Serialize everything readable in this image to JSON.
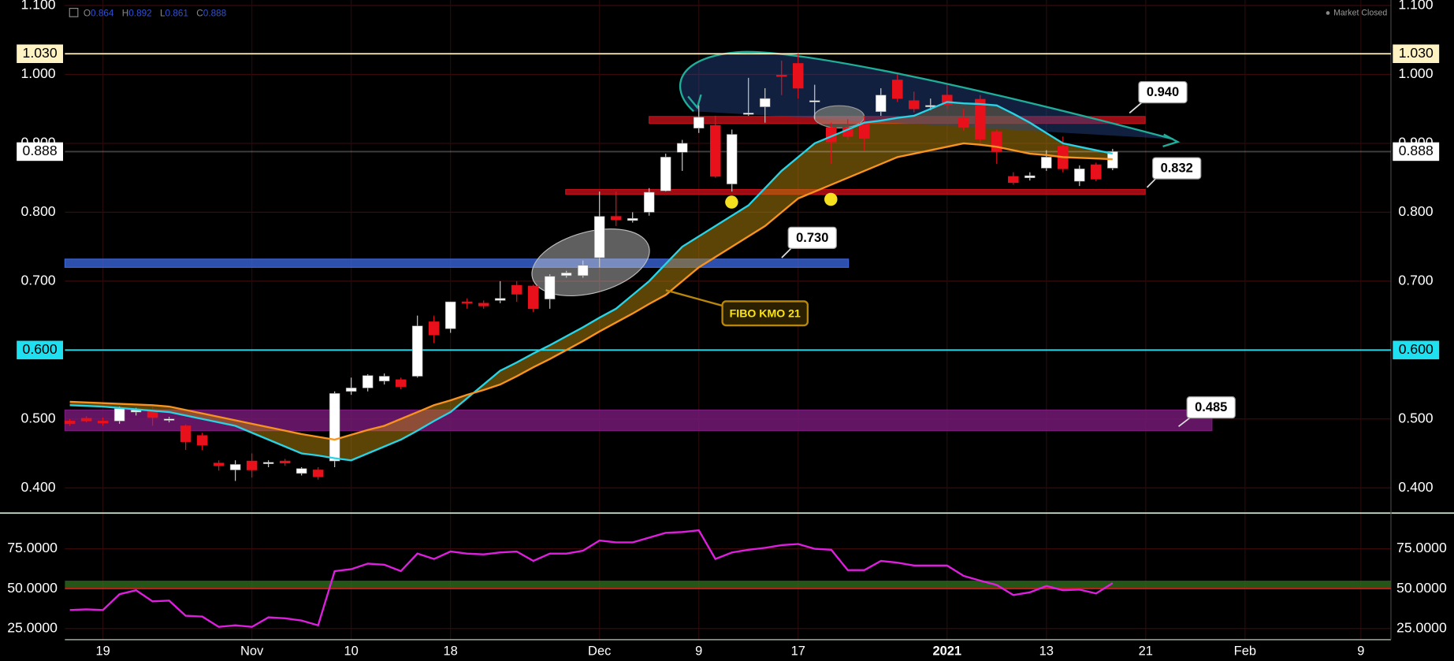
{
  "header": {
    "open_label": "O",
    "open": 0.864,
    "high_label": "H",
    "high": 0.892,
    "low_label": "L",
    "low": 0.861,
    "close_label": "C",
    "close": 0.888,
    "status": "Market Closed"
  },
  "chart_data": [
    {
      "type": "candlestick",
      "categories": [
        null,
        null,
        "19",
        null,
        null,
        null,
        null,
        null,
        null,
        null,
        null,
        "Nov",
        null,
        null,
        null,
        null,
        null,
        "10",
        null,
        null,
        null,
        null,
        null,
        "18",
        null,
        null,
        null,
        null,
        null,
        null,
        null,
        null,
        "Dec",
        null,
        null,
        null,
        null,
        null,
        "9",
        null,
        null,
        null,
        null,
        null,
        "17",
        null,
        null,
        null,
        null,
        null,
        null,
        null,
        null,
        "2021",
        null,
        null,
        null,
        null,
        null,
        "13",
        null,
        null,
        null,
        null,
        null,
        "21",
        null,
        null,
        null,
        null,
        null,
        "Feb",
        null,
        null,
        null,
        null,
        null,
        null,
        "9",
        null
      ],
      "ohlc": {
        "open": [
          0.497,
          0.501,
          0.497,
          0.497,
          0.51,
          0.514,
          0.498,
          0.49,
          0.476,
          0.436,
          0.426,
          0.439,
          0.435,
          0.439,
          0.421,
          0.426,
          0.439,
          0.54,
          0.545,
          0.555,
          0.557,
          0.562,
          0.641,
          0.631,
          0.67,
          0.668,
          0.672,
          0.694,
          0.693,
          0.674,
          0.708,
          0.708,
          0.734,
          0.794,
          0.788,
          0.8,
          0.831,
          0.887,
          0.922,
          0.926,
          0.841,
          0.942,
          0.953,
          0.999,
          1.016,
          0.96,
          0.923,
          0.923,
          0.929,
          0.946,
          0.992,
          0.962,
          0.953,
          0.97,
          0.937,
          0.964,
          0.917,
          0.852,
          0.85,
          0.864,
          0.896,
          0.845,
          0.869,
          0.864
        ],
        "high": [
          0.5,
          0.504,
          0.502,
          0.518,
          0.516,
          0.52,
          0.503,
          0.492,
          0.48,
          0.44,
          0.44,
          0.45,
          0.44,
          0.442,
          0.43,
          0.43,
          0.54,
          0.56,
          0.565,
          0.566,
          0.56,
          0.65,
          0.65,
          0.67,
          0.675,
          0.672,
          0.7,
          0.7,
          0.695,
          0.71,
          0.715,
          0.73,
          0.83,
          0.83,
          0.8,
          0.835,
          0.885,
          0.905,
          0.955,
          0.94,
          0.92,
          0.995,
          0.98,
          1.02,
          1.03,
          0.985,
          0.93,
          0.935,
          0.94,
          0.98,
          1.0,
          0.975,
          0.965,
          0.985,
          0.95,
          0.97,
          0.92,
          0.858,
          0.858,
          0.89,
          0.91,
          0.868,
          0.872,
          0.892
        ],
        "low": [
          0.49,
          0.495,
          0.49,
          0.493,
          0.505,
          0.49,
          0.495,
          0.455,
          0.455,
          0.425,
          0.41,
          0.415,
          0.43,
          0.432,
          0.418,
          0.412,
          0.43,
          0.535,
          0.54,
          0.55,
          0.543,
          0.56,
          0.61,
          0.625,
          0.66,
          0.66,
          0.668,
          0.67,
          0.655,
          0.66,
          0.705,
          0.705,
          0.72,
          0.78,
          0.785,
          0.795,
          0.83,
          0.86,
          0.915,
          0.85,
          0.83,
          0.94,
          0.93,
          0.97,
          0.965,
          0.935,
          0.87,
          0.905,
          0.89,
          0.94,
          0.96,
          0.945,
          0.948,
          0.95,
          0.918,
          0.9,
          0.87,
          0.84,
          0.846,
          0.86,
          0.858,
          0.838,
          0.845,
          0.861
        ],
        "close": [
          0.493,
          0.497,
          0.494,
          0.515,
          0.513,
          0.502,
          0.5,
          0.467,
          0.462,
          0.432,
          0.434,
          0.426,
          0.437,
          0.436,
          0.428,
          0.416,
          0.537,
          0.545,
          0.563,
          0.562,
          0.547,
          0.635,
          0.622,
          0.67,
          0.668,
          0.664,
          0.675,
          0.681,
          0.66,
          0.707,
          0.712,
          0.723,
          0.794,
          0.789,
          0.791,
          0.829,
          0.88,
          0.9,
          0.938,
          0.852,
          0.913,
          0.944,
          0.965,
          0.997,
          0.98,
          0.962,
          0.902,
          0.91,
          0.907,
          0.97,
          0.965,
          0.95,
          0.955,
          0.956,
          0.923,
          0.906,
          0.888,
          0.843,
          0.853,
          0.88,
          0.863,
          0.863,
          0.848,
          0.888
        ]
      },
      "up_color": "#ffffff",
      "down_color": "#e8101a",
      "overlays": [
        {
          "color": "#29d3e6",
          "values": [
            0.52,
            0.519,
            0.518,
            0.516,
            0.514,
            0.512,
            0.51,
            0.505,
            0.5,
            0.495,
            0.49,
            0.48,
            0.47,
            0.46,
            0.45,
            0.447,
            0.443,
            0.44,
            0.45,
            0.46,
            0.47,
            0.483,
            0.497,
            0.51,
            0.53,
            0.55,
            0.57,
            0.582,
            0.595,
            0.607,
            0.62,
            0.633,
            0.647,
            0.66,
            0.68,
            0.7,
            0.725,
            0.75,
            0.765,
            0.78,
            0.795,
            0.81,
            0.835,
            0.86,
            0.88,
            0.9,
            0.91,
            0.92,
            0.93,
            0.933,
            0.937,
            0.94,
            0.95,
            0.96,
            0.958,
            0.957,
            0.955,
            0.943,
            0.93,
            0.915,
            0.9,
            0.895,
            0.89,
            0.885
          ]
        },
        {
          "color": "#f7931e",
          "values": [
            0.525,
            0.524,
            0.523,
            0.522,
            0.521,
            0.52,
            0.518,
            0.513,
            0.508,
            0.503,
            0.498,
            0.493,
            0.488,
            0.483,
            0.478,
            0.474,
            0.47,
            0.477,
            0.484,
            0.49,
            0.5,
            0.51,
            0.52,
            0.527,
            0.535,
            0.542,
            0.55,
            0.562,
            0.575,
            0.587,
            0.6,
            0.613,
            0.627,
            0.64,
            0.653,
            0.667,
            0.68,
            0.7,
            0.72,
            0.735,
            0.75,
            0.765,
            0.78,
            0.8,
            0.82,
            0.83,
            0.84,
            0.85,
            0.86,
            0.87,
            0.88,
            0.885,
            0.89,
            0.895,
            0.9,
            0.898,
            0.895,
            0.89,
            0.885,
            0.883,
            0.88,
            0.879,
            0.878,
            0.877
          ]
        }
      ],
      "ylim": [
        0.364,
        1.108
      ],
      "yticks": [
        {
          "value": 0.4,
          "label": "0.400"
        },
        {
          "value": 0.5,
          "label": "0.500"
        },
        {
          "value": 0.6,
          "label": "0.600"
        },
        {
          "value": 0.7,
          "label": "0.700"
        },
        {
          "value": 0.8,
          "label": "0.800"
        },
        {
          "value": 0.9,
          "label": "0.900"
        },
        {
          "value": 1.0,
          "label": "1.000"
        },
        {
          "value": 1.1,
          "label": "1.100"
        }
      ],
      "grid": true,
      "levels": [
        {
          "value": 1.03,
          "label": "1.030",
          "color": "#fff3c4"
        },
        {
          "value": 0.888,
          "label": "0.888",
          "color": "#ffffff"
        },
        {
          "value": 0.6,
          "label": "0.600",
          "color": "#1ee0f0"
        }
      ],
      "zones": [
        {
          "low": 0.929,
          "high": 0.939,
          "color": "#c0101a"
        },
        {
          "low": 0.826,
          "high": 0.833,
          "color": "#c0101a"
        },
        {
          "low": 0.72,
          "high": 0.732,
          "color": "#3a64d8"
        },
        {
          "low": 0.483,
          "high": 0.513,
          "color": "#7a1a7a"
        }
      ],
      "annotations": [
        {
          "value": 0.94,
          "label": "0.940"
        },
        {
          "value": 0.832,
          "label": "0.832"
        },
        {
          "value": 0.73,
          "label": "0.730"
        },
        {
          "value": 0.485,
          "label": "0.485"
        }
      ],
      "note": "FIBO KMO 21"
    },
    {
      "type": "line",
      "color": "#e01ee0",
      "values": [
        36.6,
        37,
        36.6,
        46.5,
        49,
        42,
        42.5,
        33,
        32.5,
        26,
        27,
        26,
        32,
        31.4,
        30,
        27,
        61,
        62.2,
        65.7,
        65,
        61,
        72,
        68.6,
        73.3,
        72,
        71.5,
        72.7,
        73.3,
        67.4,
        72,
        72,
        73.8,
        80.2,
        79,
        79,
        82,
        85,
        85.5,
        86.6,
        68.6,
        72.7,
        74.4,
        75.6,
        77.3,
        78,
        75,
        74.4,
        61.6,
        61.6,
        67.4,
        66.3,
        64.5,
        64.5,
        64.5,
        58,
        55,
        52.3,
        46,
        47.7,
        51.7,
        49,
        49.4,
        47,
        53.5
      ],
      "ylim": [
        18,
        96.5
      ],
      "yticks": [
        {
          "value": 25,
          "label": "25.0000"
        },
        {
          "value": 50,
          "label": "50.0000"
        },
        {
          "value": 75,
          "label": "75.0000"
        }
      ],
      "band": {
        "low": 50,
        "high": 55,
        "color": "#2e6b1e",
        "line_color": "#e01010"
      }
    }
  ]
}
